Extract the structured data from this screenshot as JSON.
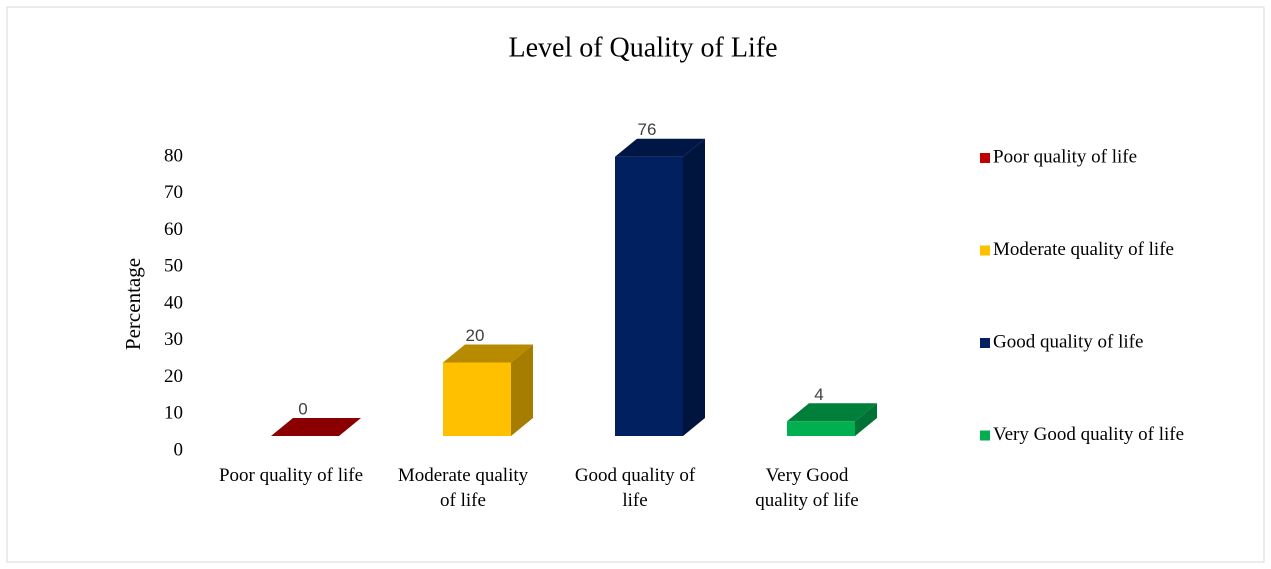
{
  "chart_data": {
    "type": "bar3d",
    "title": "Level of Quality of Life",
    "y_label": "Percentage",
    "categories": [
      "Poor quality of life",
      "Moderate quality of life",
      "Good quality of life",
      "Very Good quality of life"
    ],
    "values": [
      0,
      20,
      76,
      4
    ],
    "colors": [
      "#c00000",
      "#ffc000",
      "#002060",
      "#00b050"
    ],
    "ylim": [
      0,
      80
    ],
    "yticks": [
      0,
      10,
      20,
      30,
      40,
      50,
      60,
      70,
      80
    ],
    "legend": "right"
  }
}
